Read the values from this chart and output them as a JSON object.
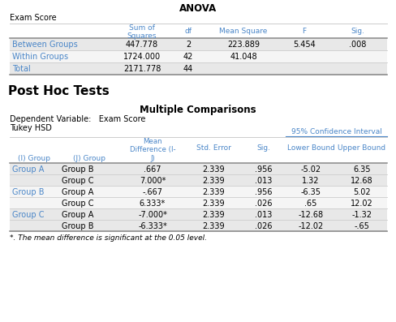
{
  "title_anova": "ANOVA",
  "subtitle_anova": "Exam Score",
  "anova_rows": [
    [
      "Between Groups",
      "447.778",
      "2",
      "223.889",
      "5.454",
      ".008"
    ],
    [
      "Within Groups",
      "1724.000",
      "42",
      "41.048",
      "",
      ""
    ],
    [
      "Total",
      "2171.778",
      "44",
      "",
      "",
      ""
    ]
  ],
  "section_title": "Post Hoc Tests",
  "table2_title": "Multiple Comparisons",
  "dep_var_label": "Dependent Variable:   Exam Score",
  "method_label": "Tukey HSD",
  "mc_rows": [
    [
      "Group A",
      "Group B",
      ".667",
      "2.339",
      ".956",
      "-5.02",
      "6.35"
    ],
    [
      "",
      "Group C",
      "7.000*",
      "2.339",
      ".013",
      "1.32",
      "12.68"
    ],
    [
      "Group B",
      "Group A",
      "-.667",
      "2.339",
      ".956",
      "-6.35",
      "5.02"
    ],
    [
      "",
      "Group C",
      "6.333*",
      "2.339",
      ".026",
      ".65",
      "12.02"
    ],
    [
      "Group C",
      "Group A",
      "-7.000*",
      "2.339",
      ".013",
      "-12.68",
      "-1.32"
    ],
    [
      "",
      "Group B",
      "-6.333*",
      "2.339",
      ".026",
      "-12.02",
      "-.65"
    ]
  ],
  "footnote": "*. The mean difference is significant at the 0.05 level.",
  "blue": "#4a86c8",
  "bg": "#ffffff",
  "row_bg_a": "#e8e8e8",
  "row_bg_b": "#f5f5f5",
  "sep_dark": "#888888",
  "sep_light": "#cccccc"
}
